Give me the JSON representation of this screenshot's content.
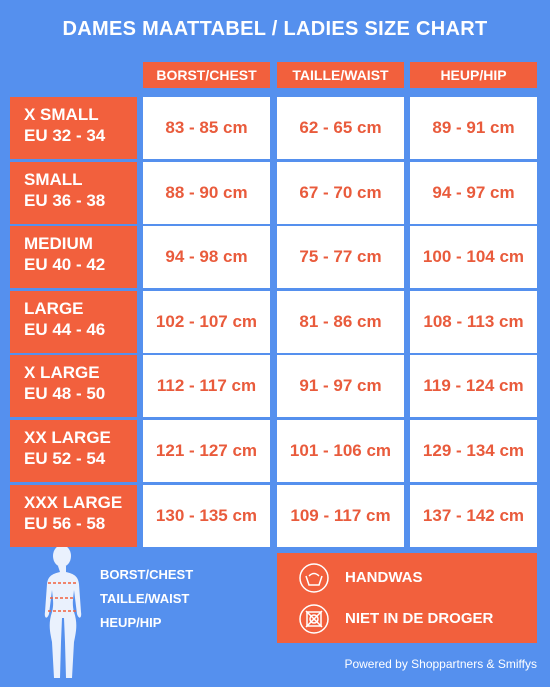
{
  "title": "DAMES MAATTABEL / LADIES SIZE CHART",
  "table": {
    "columns": [
      "BORST/CHEST",
      "TAILLE/WAIST",
      "HEUP/HIP"
    ],
    "rows": [
      {
        "size": "X SMALL",
        "eu": "EU 32 - 34",
        "cells": [
          "83 - 85 cm",
          "62 - 65 cm",
          "89 - 91 cm"
        ]
      },
      {
        "size": "SMALL",
        "eu": "EU 36 - 38",
        "cells": [
          "88 - 90 cm",
          "67 - 70 cm",
          "94 - 97 cm"
        ]
      },
      {
        "size": "MEDIUM",
        "eu": "EU 40 - 42",
        "cells": [
          "94 - 98 cm",
          "75 - 77 cm",
          "100 - 104 cm"
        ]
      },
      {
        "size": "LARGE",
        "eu": "EU 44 - 46",
        "cells": [
          "102 - 107 cm",
          "81 - 86 cm",
          "108 - 113 cm"
        ]
      },
      {
        "size": "X LARGE",
        "eu": "EU 48 - 50",
        "cells": [
          "112 - 117 cm",
          "91 - 97 cm",
          "119 - 124 cm"
        ]
      },
      {
        "size": "XX LARGE",
        "eu": "EU 52 - 54",
        "cells": [
          "121 - 127 cm",
          "101 - 106 cm",
          "129 - 134 cm"
        ]
      },
      {
        "size": "XXX LARGE",
        "eu": "EU 56 - 58",
        "cells": [
          "130 - 135 cm",
          "109 - 117 cm",
          "137 - 142 cm"
        ]
      }
    ]
  },
  "legend": [
    "BORST/CHEST",
    "TAILLE/WAIST",
    "HEUP/HIP"
  ],
  "care": [
    "HANDWAS",
    "NIET IN DE DROGER"
  ],
  "footer": "Powered by Shoppartners & Smiffys"
}
